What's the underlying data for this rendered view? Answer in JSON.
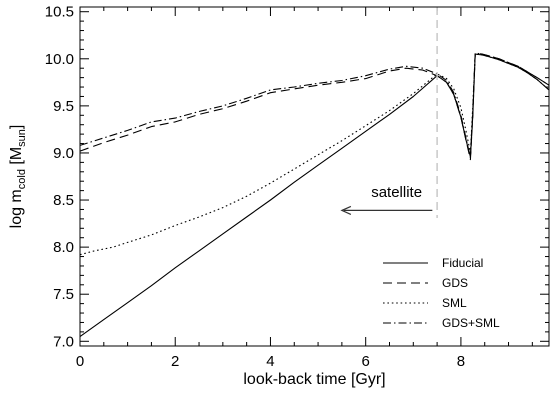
{
  "chart_data": {
    "type": "line",
    "xlabel": "look-back time [Gyr]",
    "ylabel": {
      "prefix": "log m",
      "sub1": "cold",
      "mid": " [M",
      "sub2": "sun",
      "suffix": "]"
    },
    "xlim": [
      0,
      9.85
    ],
    "ylim": [
      6.95,
      10.55
    ],
    "x_ticks": [
      0,
      2,
      4,
      6,
      8
    ],
    "x_tick_labels": [
      "0",
      "2",
      "4",
      "6",
      "8"
    ],
    "y_ticks": [
      7.0,
      7.5,
      8.0,
      8.5,
      9.0,
      9.5,
      10.0,
      10.5
    ],
    "y_tick_labels": [
      "7.0",
      "7.5",
      "8.0",
      "8.5",
      "9.0",
      "9.5",
      "10.0",
      "10.5"
    ],
    "legend_position": "bottom-right",
    "annotation": {
      "text": "satellite",
      "arrow_from": [
        7.4,
        8.39
      ],
      "arrow_to": [
        5.5,
        8.39
      ],
      "vline_x": 7.5
    },
    "series": [
      {
        "name": "Fiducial",
        "dash": "",
        "x": [
          0,
          0.5,
          1,
          1.5,
          2,
          2.5,
          3,
          3.5,
          4,
          4.5,
          5,
          5.5,
          6,
          6.5,
          7,
          7.5,
          7.7,
          7.85,
          8.0,
          8.1,
          8.2,
          8.25,
          8.3,
          8.45,
          8.6,
          8.8,
          9.0,
          9.2,
          9.4,
          9.6,
          9.85
        ],
        "y": [
          7.05,
          7.23,
          7.41,
          7.59,
          7.78,
          7.96,
          8.14,
          8.32,
          8.5,
          8.69,
          8.87,
          9.05,
          9.23,
          9.41,
          9.6,
          9.82,
          9.75,
          9.62,
          9.38,
          9.15,
          8.96,
          9.4,
          10.05,
          10.04,
          10.02,
          9.99,
          9.95,
          9.91,
          9.85,
          9.78,
          9.67
        ]
      },
      {
        "name": "GDS",
        "dash": "9,5",
        "x": [
          0,
          0.5,
          1,
          1.5,
          2,
          2.5,
          3,
          3.5,
          4,
          4.5,
          5,
          5.5,
          6,
          6.5,
          6.85,
          7.2,
          7.5,
          7.7,
          7.85,
          8.0,
          8.1,
          8.2,
          8.25,
          8.3,
          8.45,
          8.6,
          8.8,
          9.0,
          9.2,
          9.4,
          9.6,
          9.85
        ],
        "y": [
          9.02,
          9.11,
          9.19,
          9.28,
          9.33,
          9.41,
          9.47,
          9.55,
          9.64,
          9.68,
          9.72,
          9.75,
          9.79,
          9.87,
          9.9,
          9.88,
          9.82,
          9.75,
          9.62,
          9.38,
          9.15,
          8.93,
          9.4,
          10.06,
          10.05,
          10.03,
          10.0,
          9.96,
          9.92,
          9.86,
          9.8,
          9.72
        ]
      },
      {
        "name": "SML",
        "dash": "1.6,2.8",
        "x": [
          0,
          0.3,
          0.7,
          1.0,
          1.5,
          2.0,
          2.5,
          3.0,
          3.5,
          4.0,
          4.5,
          5.0,
          5.5,
          6.0,
          6.5,
          7.0,
          7.5,
          7.7,
          7.85,
          8.0,
          8.1,
          8.2,
          8.25,
          8.3,
          8.45,
          8.6,
          8.8,
          9.0,
          9.2,
          9.4,
          9.6,
          9.85
        ],
        "y": [
          7.92,
          7.96,
          8.0,
          8.05,
          8.13,
          8.23,
          8.32,
          8.42,
          8.54,
          8.68,
          8.83,
          8.98,
          9.13,
          9.29,
          9.45,
          9.63,
          9.84,
          9.79,
          9.68,
          9.48,
          9.25,
          9.0,
          9.5,
          10.05,
          10.04,
          10.02,
          9.99,
          9.95,
          9.91,
          9.85,
          9.78,
          9.67
        ]
      },
      {
        "name": "GDS+SML",
        "dash": "8,3,1.5,3",
        "x": [
          0,
          0.5,
          1,
          1.5,
          2,
          2.5,
          3,
          3.5,
          4,
          4.5,
          5,
          5.5,
          6,
          6.5,
          6.85,
          7.2,
          7.5,
          7.7,
          7.85,
          8.0,
          8.1,
          8.2,
          8.25,
          8.3,
          8.45,
          8.6,
          8.8,
          9.0,
          9.2,
          9.4,
          9.6,
          9.85
        ],
        "y": [
          9.08,
          9.16,
          9.24,
          9.33,
          9.37,
          9.44,
          9.5,
          9.58,
          9.67,
          9.7,
          9.74,
          9.77,
          9.82,
          9.89,
          9.92,
          9.9,
          9.84,
          9.77,
          9.64,
          9.4,
          9.17,
          8.95,
          9.45,
          10.06,
          10.05,
          10.03,
          10.0,
          9.96,
          9.92,
          9.86,
          9.8,
          9.72
        ]
      }
    ]
  },
  "colors": {
    "line": "#000000",
    "vline": "#c8c8c8",
    "annotation": "#8c8c8c",
    "arrow": "#333333"
  }
}
